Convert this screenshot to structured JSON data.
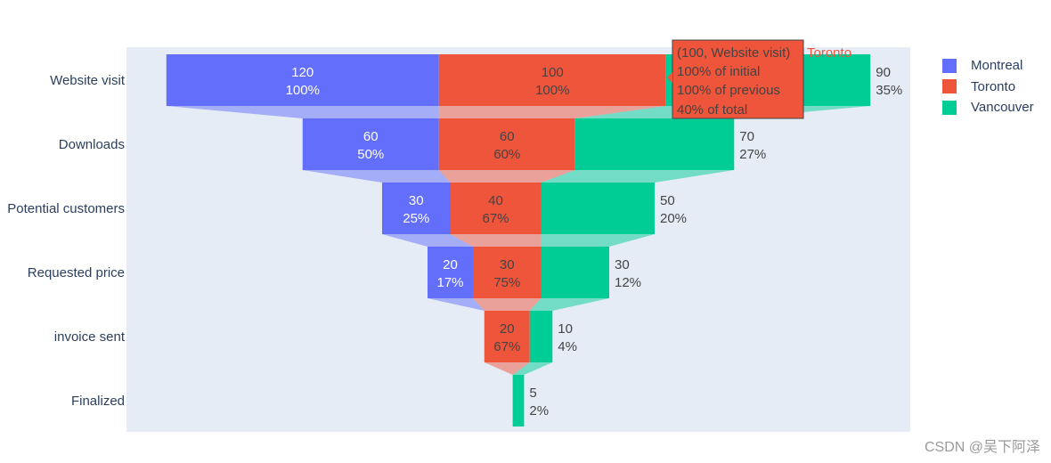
{
  "chart_data": {
    "type": "funnel",
    "categories": [
      "Website visit",
      "Downloads",
      "Potential customers",
      "Requested price",
      "invoice sent",
      "Finalized"
    ],
    "series": [
      {
        "name": "Montreal",
        "color": "#636efa",
        "values": [
          120,
          60,
          30,
          20,
          null,
          null
        ],
        "labels": [
          "100%",
          "50%",
          "25%",
          "17%",
          null,
          null
        ]
      },
      {
        "name": "Toronto",
        "color": "#ef553b",
        "values": [
          100,
          60,
          40,
          30,
          20,
          null
        ],
        "labels": [
          "100%",
          "60%",
          "67%",
          "75%",
          "67%",
          null
        ]
      },
      {
        "name": "Vancouver",
        "color": "#00cc96",
        "values": [
          90,
          70,
          50,
          30,
          10,
          5
        ],
        "labels": [
          "35%",
          "27%",
          "20%",
          "12%",
          "4%",
          "2%"
        ]
      }
    ],
    "legend_position": "top-right"
  },
  "tooltip": {
    "lines": [
      "(100, Website visit)",
      "100% of initial",
      "100% of previous",
      "40% of total"
    ],
    "series_name": "Toronto"
  },
  "watermark": "CSDN @吴下阿泽"
}
